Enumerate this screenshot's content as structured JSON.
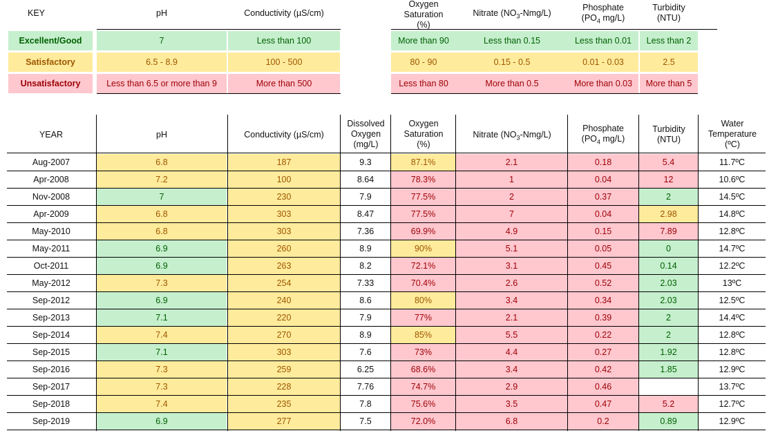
{
  "key_table": {
    "title": "KEY",
    "headers": [
      "pH",
      "Conductivity (µS/cm)",
      "Oxygen Saturation (%)",
      "Nitrate (NO3-Nmg/L)",
      "Phosphate (PO4 mg/L)",
      "Turbidity (NTU)"
    ],
    "rows": [
      {
        "label": "Excellent/Good",
        "level": "good",
        "values": [
          "7",
          "Less than 100",
          "More than 90",
          "Less than 0.15",
          "Less than 0.01",
          "Less than 2"
        ]
      },
      {
        "label": "Satisfactory",
        "level": "satisfactory",
        "values": [
          "6.5 - 8.9",
          "100 - 500",
          "80 - 90",
          "0.15 - 0.5",
          "0.01 - 0.03",
          "2.5"
        ]
      },
      {
        "label": "Unsatisfactory",
        "level": "unsatisfactory",
        "values": [
          "Less than 6.5 or more than 9",
          "More than 500",
          "Less than 80",
          "More than 0.5",
          "More than 0.03",
          "More than 5"
        ]
      }
    ]
  },
  "colors": {
    "good_fill": "#c6efce",
    "good_text": "#006100",
    "satisfactory_fill": "#ffeb9c",
    "satisfactory_text": "#9c5700",
    "unsatisfactory_fill": "#ffc7ce",
    "unsatisfactory_text": "#9c0006"
  },
  "data_table": {
    "headers": [
      "YEAR",
      "pH",
      "Conductivity (µS/cm)",
      "Dissolved Oxygen (mg/L)",
      "Oxygen Saturation (%)",
      "Nitrate (NO3-Nmg/L)",
      "Phosphate (PO4 mg/L)",
      "Turbidity (NTU)",
      "Water Temperature (ºC)"
    ],
    "rows": [
      {
        "year": "Aug-2007",
        "ph": "6.8",
        "cond": "187",
        "do": "9.3",
        "sat": "87.1%",
        "nitrate": "2.1",
        "phos": "0.18",
        "turb": "5.4",
        "temp": "11.7ºC"
      },
      {
        "year": "Apr-2008",
        "ph": "7.2",
        "cond": "100",
        "do": "8.64",
        "sat": "78.3%",
        "nitrate": "1",
        "phos": "0.04",
        "turb": "12",
        "temp": "10.6ºC"
      },
      {
        "year": "Nov-2008",
        "ph": "7",
        "cond": "230",
        "do": "7.9",
        "sat": "77.5%",
        "nitrate": "2",
        "phos": "0.37",
        "turb": "2",
        "temp": "14.5ºC"
      },
      {
        "year": "Apr-2009",
        "ph": "6.8",
        "cond": "303",
        "do": "8.47",
        "sat": "77.5%",
        "nitrate": "7",
        "phos": "0.04",
        "turb": "2.98",
        "temp": "14.8ºC"
      },
      {
        "year": "May-2010",
        "ph": "6.8",
        "cond": "303",
        "do": "7.36",
        "sat": "69.9%",
        "nitrate": "4.9",
        "phos": "0.15",
        "turb": "7.89",
        "temp": "12.8ºC"
      },
      {
        "year": "May-2011",
        "ph": "6.9",
        "cond": "260",
        "do": "8.9",
        "sat": "90%",
        "nitrate": "5.1",
        "phos": "0.05",
        "turb": "0",
        "temp": "14.7ºC"
      },
      {
        "year": "Oct-2011",
        "ph": "6.9",
        "cond": "263",
        "do": "8.2",
        "sat": "72.1%",
        "nitrate": "3.1",
        "phos": "0.45",
        "turb": "0.14",
        "temp": "12.2ºC"
      },
      {
        "year": "May-2012",
        "ph": "7.3",
        "cond": "254",
        "do": "7.33",
        "sat": "70.4%",
        "nitrate": "2.6",
        "phos": "0.52",
        "turb": "2.03",
        "temp": "13ºC"
      },
      {
        "year": "Sep-2012",
        "ph": "6.9",
        "cond": "240",
        "do": "8.6",
        "sat": "80%",
        "nitrate": "3.4",
        "phos": "0.34",
        "turb": "2.03",
        "temp": "12.5ºC"
      },
      {
        "year": "Sep-2013",
        "ph": "7.1",
        "cond": "220",
        "do": "7.9",
        "sat": "77%",
        "nitrate": "2.1",
        "phos": "0.39",
        "turb": "2",
        "temp": "14.4ºC"
      },
      {
        "year": "Sep-2014",
        "ph": "7.4",
        "cond": "270",
        "do": "8.9",
        "sat": "85%",
        "nitrate": "5.5",
        "phos": "0.22",
        "turb": "2",
        "temp": "12.8ºC"
      },
      {
        "year": "Sep-2015",
        "ph": "7.1",
        "cond": "303",
        "do": "7.6",
        "sat": "73%",
        "nitrate": "4.4",
        "phos": "0.27",
        "turb": "1.92",
        "temp": "12.8ºC"
      },
      {
        "year": "Sep-2016",
        "ph": "7.3",
        "cond": "259",
        "do": "6.25",
        "sat": "68.6%",
        "nitrate": "3.4",
        "phos": "0.42",
        "turb": "1.85",
        "temp": "12.9ºC"
      },
      {
        "year": "Sep-2017",
        "ph": "7.3",
        "cond": "228",
        "do": "7.76",
        "sat": "74.7%",
        "nitrate": "2.9",
        "phos": "0.46",
        "turb": "",
        "temp": "13.7ºC"
      },
      {
        "year": "Sep-2018",
        "ph": "7.4",
        "cond": "235",
        "do": "7.8",
        "sat": "75.6%",
        "nitrate": "3.5",
        "phos": "0.47",
        "turb": "5.2",
        "temp": "12.7ºC"
      },
      {
        "year": "Sep-2019",
        "ph": "6.9",
        "cond": "277",
        "do": "7.5",
        "sat": "72.0%",
        "nitrate": "6.8",
        "phos": "0.2",
        "turb": "0.89",
        "temp": "12.9ºC"
      }
    ]
  }
}
